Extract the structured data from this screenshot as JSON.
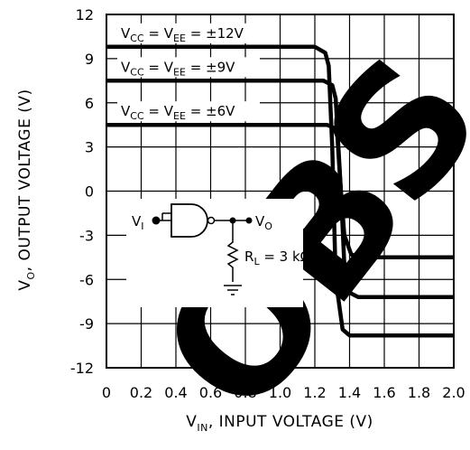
{
  "chart_data": {
    "type": "line",
    "xlabel": {
      "main": "V",
      "sub": "IN",
      "rest": ", INPUT VOLTAGE (V)"
    },
    "ylabel": {
      "main": "V",
      "sub": "O",
      "rest": ", OUTPUT VOLTAGE (V)"
    },
    "xlim": [
      0,
      2.0
    ],
    "ylim": [
      -12,
      12
    ],
    "x_ticks": [
      0,
      0.2,
      0.4,
      0.6,
      0.8,
      1.0,
      1.2,
      1.4,
      1.6,
      1.8,
      2.0
    ],
    "x_tick_labels": [
      "0",
      "0.2",
      "0.4",
      "0.6",
      "0.8",
      "1.0",
      "1.2",
      "1.4",
      "1.6",
      "1.8",
      "2.0"
    ],
    "y_ticks": [
      12,
      9,
      6,
      3,
      0,
      -3,
      -6,
      -9,
      -12
    ],
    "y_tick_labels": [
      "12",
      "9",
      "6",
      "3",
      "0",
      "-3",
      "-6",
      "-9",
      "-12"
    ],
    "grid": true,
    "series": [
      {
        "label_parts": [
          "V",
          "CC",
          " = V",
          "EE",
          " = ±12V"
        ],
        "color": "#000000",
        "x": [
          0,
          1.2,
          1.26,
          1.28,
          1.3,
          1.32,
          1.36,
          1.4,
          2.0
        ],
        "y": [
          9.8,
          9.8,
          9.4,
          8.5,
          3,
          -6,
          -9.4,
          -9.8,
          -9.8
        ]
      },
      {
        "label_parts": [
          "V",
          "CC",
          " = V",
          "EE",
          " = ±9V"
        ],
        "color": "#000000",
        "x": [
          0,
          1.25,
          1.3,
          1.32,
          1.35,
          1.37,
          1.4,
          1.45,
          2.0
        ],
        "y": [
          7.5,
          7.5,
          7.2,
          6.3,
          0,
          -5,
          -6.9,
          -7.2,
          -7.2
        ]
      },
      {
        "label_parts": [
          "V",
          "CC",
          " = V",
          "EE",
          " = ±6V"
        ],
        "color": "#000000",
        "x": [
          0,
          1.27,
          1.31,
          1.33,
          1.35,
          1.37,
          1.41,
          1.46,
          2.0
        ],
        "y": [
          4.5,
          4.5,
          4.3,
          3.7,
          0,
          -3,
          -4.3,
          -4.5,
          -4.5
        ]
      }
    ],
    "inset_labels": {
      "input": "V",
      "input_sub": "I",
      "output": "V",
      "output_sub": "O",
      "load": "R",
      "load_sub": "L",
      "load_value": " = 3 kΩ"
    },
    "watermark": "OBS"
  }
}
